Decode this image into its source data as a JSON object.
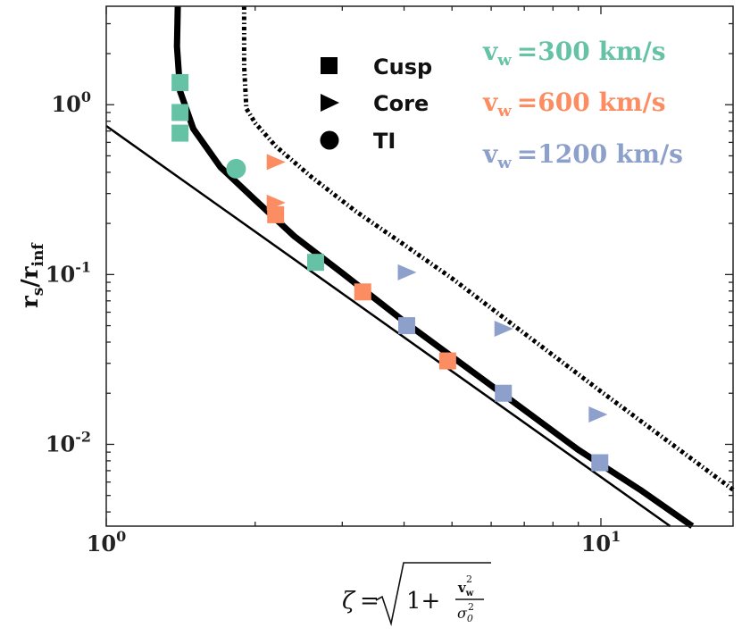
{
  "chart_data": {
    "type": "scatter",
    "x_scale": "log",
    "y_scale": "log",
    "xlim": [
      1.0,
      18.5
    ],
    "ylim": [
      0.0033,
      3.8
    ],
    "x_ticks": [
      {
        "value": 1,
        "base": "10",
        "exp": "0"
      },
      {
        "value": 10,
        "base": "10",
        "exp": "1"
      }
    ],
    "y_ticks": [
      {
        "value": 0.01,
        "base": "10",
        "exp": "-2"
      },
      {
        "value": 0.1,
        "base": "10",
        "exp": "-1"
      },
      {
        "value": 1,
        "base": "10",
        "exp": "0"
      }
    ],
    "ylabel": {
      "main": "r",
      "sub1": "s",
      "sep": "/r",
      "sub2": "inf"
    },
    "xlabel": {
      "zeta": "ζ",
      "eq": "=",
      "one_plus": "1+",
      "num_main": "v",
      "num_sub": "w",
      "num_sup": "2",
      "den_main": "σ",
      "den_sub": "0",
      "den_sup": "2"
    },
    "legend": {
      "markers": [
        {
          "shape": "square",
          "label": "Cusp"
        },
        {
          "shape": "triangle",
          "label": "Core"
        },
        {
          "shape": "circle",
          "label": "TI"
        }
      ],
      "velocities": [
        {
          "v": "v",
          "sub": "w",
          "text": "=300 km/s",
          "color": "#66c2a5"
        },
        {
          "v": "v",
          "sub": "w",
          "text": "=600 km/s",
          "color": "#fc8d62"
        },
        {
          "v": "v",
          "sub": "w",
          "text": "=1200 km/s",
          "color": "#8da0cb"
        }
      ]
    },
    "points": [
      {
        "shape": "square",
        "color": "#66c2a5",
        "x": 1.41,
        "y": 1.35
      },
      {
        "shape": "square",
        "color": "#66c2a5",
        "x": 1.41,
        "y": 0.9
      },
      {
        "shape": "square",
        "color": "#66c2a5",
        "x": 1.41,
        "y": 0.68
      },
      {
        "shape": "circle",
        "color": "#66c2a5",
        "x": 1.83,
        "y": 0.42
      },
      {
        "shape": "square",
        "color": "#66c2a5",
        "x": 2.65,
        "y": 0.118
      },
      {
        "shape": "triangle",
        "color": "#fc8d62",
        "x": 2.2,
        "y": 0.46
      },
      {
        "shape": "triangle",
        "color": "#fc8d62",
        "x": 2.2,
        "y": 0.265
      },
      {
        "shape": "square",
        "color": "#fc8d62",
        "x": 2.2,
        "y": 0.225
      },
      {
        "shape": "square",
        "color": "#fc8d62",
        "x": 3.3,
        "y": 0.079
      },
      {
        "shape": "square",
        "color": "#fc8d62",
        "x": 4.9,
        "y": 0.031
      },
      {
        "shape": "triangle",
        "color": "#8da0cb",
        "x": 4.05,
        "y": 0.103
      },
      {
        "shape": "square",
        "color": "#8da0cb",
        "x": 4.05,
        "y": 0.05
      },
      {
        "shape": "triangle",
        "color": "#8da0cb",
        "x": 6.35,
        "y": 0.048
      },
      {
        "shape": "square",
        "color": "#8da0cb",
        "x": 6.35,
        "y": 0.02
      },
      {
        "shape": "triangle",
        "color": "#8da0cb",
        "x": 9.85,
        "y": 0.015
      },
      {
        "shape": "square",
        "color": "#8da0cb",
        "x": 9.95,
        "y": 0.0078
      }
    ],
    "curves": [
      {
        "style": "thin-solid",
        "points": [
          [
            1.0,
            0.75
          ],
          [
            13.8,
            0.0033
          ]
        ]
      },
      {
        "style": "thick-solid",
        "points": [
          [
            1.395,
            3.8
          ],
          [
            1.39,
            2.2
          ],
          [
            1.41,
            1.2
          ],
          [
            1.5,
            0.72
          ],
          [
            1.7,
            0.43
          ],
          [
            2.0,
            0.275
          ],
          [
            2.4,
            0.168
          ],
          [
            3.0,
            0.102
          ],
          [
            4.0,
            0.053
          ],
          [
            6.0,
            0.0222
          ],
          [
            9.0,
            0.0093
          ],
          [
            12.0,
            0.0054
          ],
          [
            15.3,
            0.0033
          ]
        ]
      },
      {
        "style": "dash-dot",
        "points": [
          [
            1.9,
            3.8
          ],
          [
            1.9,
            1.7
          ],
          [
            1.92,
            0.95
          ],
          [
            2.0,
            0.78
          ],
          [
            2.2,
            0.57
          ],
          [
            2.6,
            0.375
          ],
          [
            3.2,
            0.235
          ],
          [
            4.0,
            0.15
          ],
          [
            5.0,
            0.095
          ],
          [
            7.0,
            0.045
          ],
          [
            10.0,
            0.0205
          ],
          [
            14.0,
            0.0099
          ],
          [
            18.5,
            0.0054
          ]
        ]
      }
    ]
  }
}
